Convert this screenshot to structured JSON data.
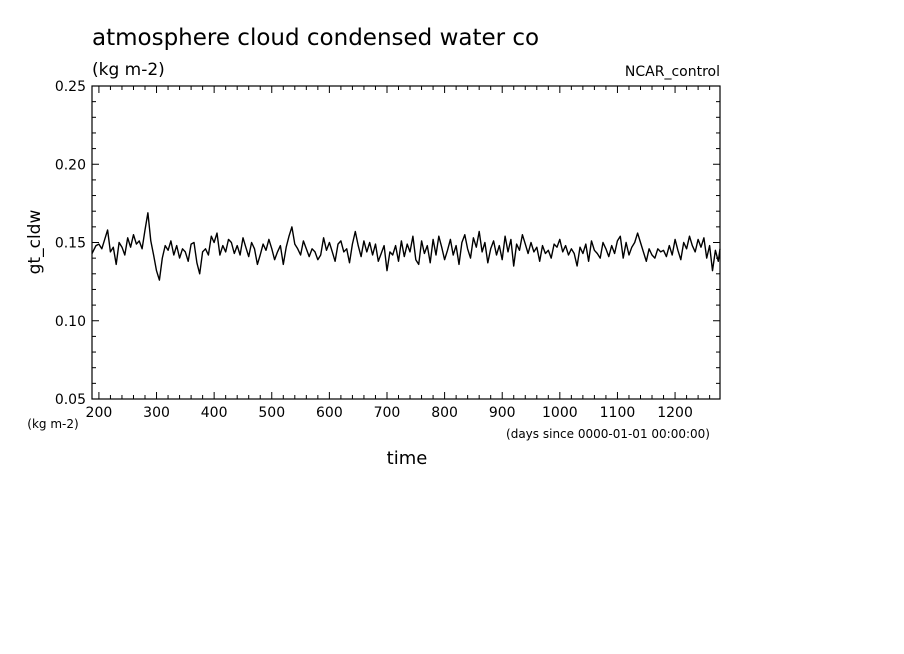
{
  "chart_data": {
    "type": "line",
    "title": "atmosphere cloud condensed water co",
    "subtitle": "(kg m-2)",
    "run_label": "NCAR_control",
    "ylabel": "gt_cldw",
    "yunits": "(kg m-2)",
    "xlabel": "time",
    "xunits": "(days since 0000-01-01 00:00:00)",
    "xlim": [
      188,
      1278
    ],
    "ylim": [
      0.05,
      0.25
    ],
    "x_ticks": [
      200,
      300,
      400,
      500,
      600,
      700,
      800,
      900,
      1000,
      1100,
      1200
    ],
    "x_tick_labels": [
      "200",
      "300",
      "400",
      "500",
      "600",
      "700",
      "800",
      "900",
      "1000",
      "1100",
      "1200"
    ],
    "y_ticks": [
      0.05,
      0.1,
      0.15,
      0.2,
      0.25
    ],
    "y_tick_labels": [
      "0.05",
      "0.10",
      "0.15",
      "0.20",
      "0.25"
    ],
    "line_color": "#000000",
    "grid": false,
    "series": [
      {
        "x": [
          188,
          195,
          200,
          205,
          210,
          215,
          220,
          225,
          230,
          235,
          240,
          245,
          250,
          255,
          260,
          265,
          270,
          275,
          280,
          285,
          290,
          295,
          300,
          305,
          310,
          315,
          320,
          325,
          330,
          335,
          340,
          345,
          350,
          355,
          360,
          365,
          370,
          375,
          380,
          385,
          390,
          395,
          400,
          405,
          410,
          415,
          420,
          425,
          430,
          435,
          440,
          445,
          450,
          455,
          460,
          465,
          470,
          475,
          480,
          485,
          490,
          495,
          500,
          505,
          510,
          515,
          520,
          525,
          530,
          535,
          540,
          545,
          550,
          555,
          560,
          565,
          570,
          575,
          580,
          585,
          590,
          595,
          600,
          605,
          610,
          615,
          620,
          625,
          630,
          635,
          640,
          645,
          650,
          655,
          660,
          665,
          670,
          675,
          680,
          685,
          690,
          695,
          700,
          705,
          710,
          715,
          720,
          725,
          730,
          735,
          740,
          745,
          750,
          755,
          760,
          765,
          770,
          775,
          780,
          785,
          790,
          795,
          800,
          805,
          810,
          815,
          820,
          825,
          830,
          835,
          840,
          845,
          850,
          855,
          860,
          865,
          870,
          875,
          880,
          885,
          890,
          895,
          900,
          905,
          910,
          915,
          920,
          925,
          930,
          935,
          940,
          945,
          950,
          955,
          960,
          965,
          970,
          975,
          980,
          985,
          990,
          995,
          1000,
          1005,
          1010,
          1015,
          1020,
          1025,
          1030,
          1035,
          1040,
          1045,
          1050,
          1055,
          1060,
          1065,
          1070,
          1075,
          1080,
          1085,
          1090,
          1095,
          1100,
          1105,
          1110,
          1115,
          1120,
          1125,
          1130,
          1135,
          1140,
          1145,
          1150,
          1155,
          1160,
          1165,
          1170,
          1175,
          1180,
          1185,
          1190,
          1195,
          1200,
          1205,
          1210,
          1215,
          1220,
          1225,
          1230,
          1235,
          1240,
          1245,
          1250,
          1255,
          1260,
          1265,
          1270,
          1275,
          1278
        ],
        "y": [
          0.143,
          0.148,
          0.149,
          0.146,
          0.152,
          0.158,
          0.144,
          0.147,
          0.136,
          0.15,
          0.147,
          0.142,
          0.153,
          0.147,
          0.155,
          0.149,
          0.151,
          0.146,
          0.158,
          0.169,
          0.151,
          0.142,
          0.132,
          0.126,
          0.14,
          0.148,
          0.145,
          0.151,
          0.142,
          0.148,
          0.14,
          0.146,
          0.144,
          0.138,
          0.149,
          0.15,
          0.137,
          0.13,
          0.144,
          0.146,
          0.142,
          0.154,
          0.15,
          0.156,
          0.142,
          0.148,
          0.144,
          0.152,
          0.15,
          0.143,
          0.148,
          0.142,
          0.153,
          0.147,
          0.141,
          0.15,
          0.146,
          0.136,
          0.142,
          0.149,
          0.145,
          0.152,
          0.146,
          0.139,
          0.144,
          0.148,
          0.136,
          0.147,
          0.154,
          0.16,
          0.149,
          0.146,
          0.142,
          0.151,
          0.146,
          0.141,
          0.146,
          0.144,
          0.139,
          0.142,
          0.153,
          0.145,
          0.15,
          0.144,
          0.138,
          0.149,
          0.151,
          0.144,
          0.146,
          0.137,
          0.149,
          0.157,
          0.148,
          0.141,
          0.151,
          0.144,
          0.15,
          0.142,
          0.149,
          0.138,
          0.143,
          0.148,
          0.132,
          0.144,
          0.142,
          0.148,
          0.138,
          0.151,
          0.141,
          0.149,
          0.144,
          0.154,
          0.139,
          0.136,
          0.151,
          0.143,
          0.148,
          0.137,
          0.152,
          0.142,
          0.154,
          0.147,
          0.139,
          0.145,
          0.152,
          0.142,
          0.148,
          0.136,
          0.15,
          0.155,
          0.146,
          0.14,
          0.153,
          0.147,
          0.157,
          0.144,
          0.15,
          0.137,
          0.146,
          0.151,
          0.142,
          0.148,
          0.139,
          0.154,
          0.144,
          0.152,
          0.135,
          0.149,
          0.145,
          0.155,
          0.149,
          0.143,
          0.15,
          0.144,
          0.147,
          0.138,
          0.148,
          0.143,
          0.145,
          0.14,
          0.149,
          0.147,
          0.152,
          0.144,
          0.148,
          0.142,
          0.146,
          0.143,
          0.135,
          0.147,
          0.143,
          0.149,
          0.138,
          0.151,
          0.145,
          0.143,
          0.14,
          0.15,
          0.146,
          0.141,
          0.148,
          0.143,
          0.151,
          0.154,
          0.14,
          0.15,
          0.142,
          0.147,
          0.15,
          0.156,
          0.15,
          0.144,
          0.138,
          0.146,
          0.142,
          0.14,
          0.146,
          0.144,
          0.145,
          0.141,
          0.148,
          0.142,
          0.152,
          0.145,
          0.139,
          0.15,
          0.146,
          0.154,
          0.148,
          0.144,
          0.152,
          0.147,
          0.153,
          0.14,
          0.148,
          0.132,
          0.145,
          0.138,
          0.146
        ]
      }
    ]
  }
}
